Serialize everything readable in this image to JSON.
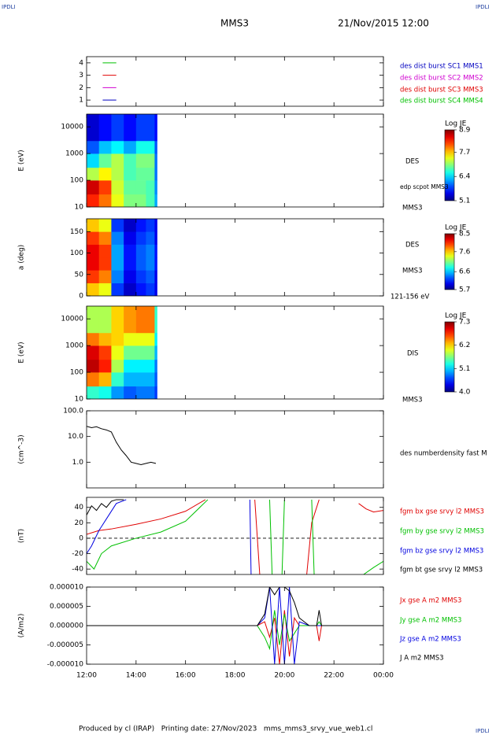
{
  "header": {
    "logo_left": "IPDLI",
    "logo_right": "IPDLI",
    "title": "MMS3",
    "date": "21/Nov/2015 12:00"
  },
  "footer": {
    "text": "Produced by cl (IRAP)   Printing date: 27/Nov/2023   mms_mms3_srvy_vue_web1.cl",
    "logo": "IPDLI"
  },
  "chart_data": [
    {
      "type": "key",
      "ylim": [
        0.5,
        4.5
      ],
      "yticks": [
        1,
        2,
        3,
        4
      ],
      "key": [
        {
          "name": "des dist burst SC1 MMS1",
          "color": "#0000c0",
          "value": 1
        },
        {
          "name": "des dist burst SC2 MMS2",
          "color": "#d000d0",
          "value": 2
        },
        {
          "name": "des dist burst SC3 MMS3",
          "color": "#e00000",
          "value": 3
        },
        {
          "name": "des dist burst SC4 MMS4",
          "color": "#00c000",
          "value": 4
        }
      ]
    },
    {
      "type": "heatmap",
      "ylabel": "E (eV)",
      "ylog": true,
      "ylim": [
        10,
        30000
      ],
      "yticks": [
        10,
        100,
        1000,
        10000
      ],
      "labels": [
        "DES",
        "edp scpot MMS3",
        "MMS3"
      ],
      "colorbar": {
        "title": "Log JE",
        "clim": [
          5.1,
          8.9
        ],
        "ticks": [
          8.9,
          7.7,
          6.4,
          5.1
        ]
      },
      "x_edges": [
        12,
        12.5,
        13,
        13.5,
        14,
        14.4,
        14.75,
        14.85
      ],
      "y_edges": [
        10,
        30,
        100,
        300,
        1000,
        3000,
        30000
      ],
      "z": [
        [
          8.3,
          8.0,
          7.4,
          7.0,
          7.0,
          6.8,
          6.2
        ],
        [
          8.6,
          8.2,
          7.3,
          6.9,
          6.9,
          6.8,
          6.1
        ],
        [
          7.2,
          7.5,
          7.2,
          6.8,
          6.9,
          6.9,
          6.0
        ],
        [
          6.4,
          6.9,
          7.2,
          6.8,
          7.0,
          7.0,
          6.0
        ],
        [
          5.9,
          6.3,
          6.5,
          6.2,
          6.6,
          6.6,
          5.9
        ],
        [
          5.4,
          5.6,
          5.8,
          5.6,
          5.8,
          5.8,
          5.6
        ]
      ]
    },
    {
      "type": "heatmap",
      "ylabel": "a (deg)",
      "ylim": [
        0,
        180
      ],
      "yticks": [
        0,
        50,
        100,
        150
      ],
      "labels": [
        "DES",
        "MMS3",
        "121-156 eV"
      ],
      "colorbar": {
        "title": "Log JE",
        "clim": [
          5.7,
          8.5
        ],
        "ticks": [
          8.5,
          7.6,
          6.6,
          5.7
        ]
      },
      "x_edges": [
        12,
        12.5,
        13,
        13.5,
        14,
        14.4,
        14.75,
        14.85
      ],
      "y_edges": [
        0,
        30,
        60,
        90,
        120,
        150,
        180
      ],
      "z": [
        [
          7.6,
          7.4,
          6.2,
          5.9,
          6.1,
          6.2,
          6.0
        ],
        [
          8.0,
          7.8,
          6.4,
          6.0,
          6.2,
          6.3,
          6.0
        ],
        [
          8.2,
          8.0,
          6.5,
          6.1,
          6.3,
          6.4,
          6.1
        ],
        [
          8.2,
          8.0,
          6.5,
          6.1,
          6.3,
          6.4,
          6.1
        ],
        [
          8.0,
          7.8,
          6.4,
          6.0,
          6.2,
          6.3,
          6.0
        ],
        [
          7.6,
          7.4,
          6.2,
          5.9,
          6.1,
          6.2,
          6.0
        ]
      ]
    },
    {
      "type": "heatmap",
      "ylabel": "E (eV)",
      "ylog": true,
      "ylim": [
        10,
        30000
      ],
      "yticks": [
        10,
        100,
        1000,
        10000
      ],
      "labels": [
        "DIS",
        "MMS3"
      ],
      "colorbar": {
        "title": "Log JE",
        "clim": [
          4,
          7.3
        ],
        "ticks": [
          7.3,
          6.2,
          5.1,
          {
            "value": 4,
            "label": "4.0"
          }
        ]
      },
      "x_edges": [
        12,
        12.5,
        13,
        13.5,
        14,
        14.4,
        14.75,
        14.85
      ],
      "y_edges": [
        10,
        30,
        100,
        300,
        1000,
        3000,
        30000
      ],
      "z": [
        [
          5.4,
          5.3,
          4.9,
          4.7,
          4.8,
          4.8,
          4.6
        ],
        [
          6.5,
          6.3,
          5.4,
          5.0,
          5.0,
          5.0,
          4.7
        ],
        [
          7.1,
          6.8,
          5.8,
          5.2,
          5.2,
          5.2,
          4.8
        ],
        [
          7.0,
          6.7,
          6.0,
          5.6,
          5.6,
          5.6,
          5.0
        ],
        [
          6.5,
          6.3,
          6.2,
          6.0,
          6.0,
          6.0,
          5.2
        ],
        [
          5.8,
          5.8,
          6.2,
          6.4,
          6.5,
          6.5,
          5.4
        ]
      ]
    },
    {
      "type": "line",
      "ylabel": "(cm^-3)",
      "ylog": true,
      "ylim": [
        0.1,
        100
      ],
      "yticks": [
        {
          "value": 1,
          "label": "1.0"
        },
        {
          "value": 10,
          "label": "10.0"
        },
        {
          "value": 100,
          "label": "100.0"
        }
      ],
      "series": [
        {
          "name": "des numberdensity fast M",
          "color": "#000000",
          "x": [
            12,
            12.2,
            12.4,
            12.6,
            12.8,
            13.0,
            13.2,
            13.4,
            13.6,
            13.8,
            14.0,
            14.2,
            14.4,
            14.6,
            14.8
          ],
          "values": [
            25,
            22,
            24,
            20,
            18,
            15,
            6,
            3,
            1.8,
            1.0,
            0.9,
            0.8,
            0.9,
            1.0,
            0.9
          ]
        }
      ]
    },
    {
      "type": "line",
      "ylabel": "(nT)",
      "ylim": [
        -47,
        53
      ],
      "yticks": [
        -40,
        -20,
        0,
        20,
        40
      ],
      "zero_line": true,
      "series": [
        {
          "name": "fgm bx gse srvy l2 MMS3",
          "color": "#e00000",
          "x": [
            12,
            12.5,
            13,
            14,
            15,
            16,
            16.8,
            17.5,
            18.8,
            19.0,
            20,
            20.9,
            21.1,
            21.4,
            22,
            23,
            23.3,
            23.6,
            24
          ],
          "values": [
            5,
            10,
            12,
            18,
            25,
            35,
            50,
            null,
            50,
            -47,
            null,
            -47,
            20,
            50,
            null,
            45,
            38,
            34,
            36
          ]
        },
        {
          "name": "fgm by gse srvy l2 MMS3",
          "color": "#00c000",
          "x": [
            12,
            12.3,
            12.6,
            13,
            14,
            15,
            16,
            16.9,
            17.5,
            19.4,
            19.5,
            19.7,
            19.9,
            20.0,
            20.5,
            21.1,
            21.2,
            22,
            23.2,
            23.6,
            24
          ],
          "values": [
            -30,
            -40,
            -20,
            -10,
            0,
            8,
            22,
            50,
            null,
            50,
            -47,
            null,
            -47,
            50,
            null,
            50,
            -47,
            null,
            -47,
            -38,
            -30
          ]
        },
        {
          "name": "fgm bz gse srvy l2 MMS3",
          "color": "#0000e0",
          "x": [
            12,
            12.2,
            12.5,
            12.8,
            13.2,
            13.6,
            18.5,
            18.6,
            18.65
          ],
          "values": [
            -20,
            -10,
            10,
            25,
            45,
            50,
            null,
            50,
            -47
          ]
        },
        {
          "name": "fgm bt gse srvy l2 MMS3",
          "color": "#000000",
          "x": [
            12,
            12.2,
            12.4,
            12.6,
            12.8,
            13.0,
            13.2,
            13.5
          ],
          "values": [
            30,
            42,
            36,
            45,
            40,
            48,
            50,
            50
          ]
        }
      ]
    },
    {
      "type": "line",
      "ylabel": "(A/m2)",
      "ylim": [
        -1e-05,
        1e-05
      ],
      "yticks": [
        {
          "value": -1e-05,
          "label": "-0.000010"
        },
        {
          "value": -5e-06,
          "label": "-0.000005"
        },
        {
          "value": 0,
          "label": "0.000000"
        },
        {
          "value": 5e-06,
          "label": "0.000005"
        },
        {
          "value": 1e-05,
          "label": "0.000010"
        }
      ],
      "xlim": [
        12,
        24
      ],
      "xticks": [
        {
          "value": 12,
          "label": "12:00"
        },
        {
          "value": 14,
          "label": "14:00"
        },
        {
          "value": 16,
          "label": "16:00"
        },
        {
          "value": 18,
          "label": "18:00"
        },
        {
          "value": 20,
          "label": "20:00"
        },
        {
          "value": 22,
          "label": "22:00"
        },
        {
          "value": 24,
          "label": "00:00"
        }
      ],
      "series": [
        {
          "name": "Jx gse A m2 MMS3",
          "color": "#e00000",
          "x": [
            12,
            14,
            16,
            18,
            18.9,
            19.2,
            19.4,
            19.6,
            19.8,
            20.0,
            20.2,
            20.4,
            20.6,
            21.0,
            21.3,
            21.4,
            21.5,
            22,
            24
          ],
          "values": [
            0,
            0,
            0,
            0,
            0,
            1e-06,
            -3e-06,
            2e-06,
            -1e-05,
            4e-06,
            -8e-06,
            2e-06,
            0,
            0,
            0,
            -4e-06,
            0,
            0,
            0
          ]
        },
        {
          "name": "Jy gse A m2 MMS3",
          "color": "#00c000",
          "x": [
            12,
            14,
            16,
            18,
            18.9,
            19.2,
            19.4,
            19.6,
            19.8,
            20.0,
            20.2,
            20.4,
            20.6,
            21.0,
            21.3,
            21.4,
            21.5,
            22,
            24
          ],
          "values": [
            0,
            0,
            0,
            0,
            0,
            -3e-06,
            -6e-06,
            4e-06,
            -5e-06,
            3e-06,
            -4e-06,
            -2e-06,
            0,
            0,
            0,
            1e-06,
            0,
            0,
            0
          ]
        },
        {
          "name": "Jz gse A m2 MMS3",
          "color": "#0000e0",
          "x": [
            12,
            14,
            16,
            18,
            18.9,
            19.2,
            19.4,
            19.6,
            19.8,
            20.0,
            20.2,
            20.4,
            20.6,
            21.0,
            21.3,
            21.4,
            21.5,
            22,
            24
          ],
          "values": [
            0,
            0,
            0,
            0,
            0,
            2e-06,
            1e-05,
            -1e-05,
            1e-05,
            -1e-05,
            1e-05,
            -1e-05,
            1e-06,
            0,
            0,
            0,
            0,
            0,
            0
          ]
        },
        {
          "name": "J A m2 MMS3",
          "color": "#000000",
          "x": [
            12,
            14,
            16,
            18,
            18.9,
            19.2,
            19.4,
            19.6,
            19.8,
            20.0,
            20.2,
            20.4,
            20.6,
            21.0,
            21.3,
            21.4,
            21.5,
            22,
            24
          ],
          "values": [
            0,
            0,
            0,
            0,
            0,
            3e-06,
            1e-05,
            8e-06,
            1e-05,
            1e-05,
            9e-06,
            6e-06,
            2e-06,
            0,
            0,
            4e-06,
            0,
            0,
            0
          ]
        }
      ]
    }
  ]
}
